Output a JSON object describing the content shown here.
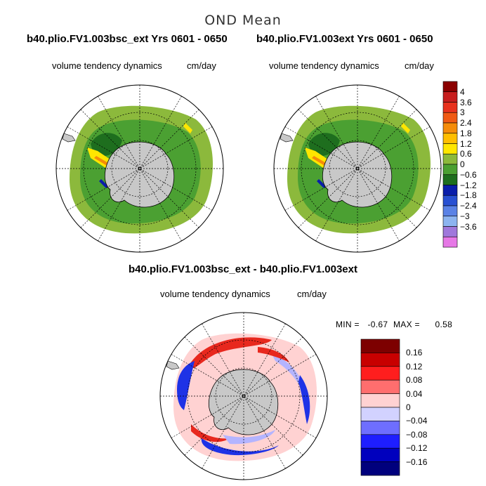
{
  "title": "OND Mean",
  "panels": {
    "left": {
      "title": "b40.plio.FV1.003bsc_ext  Yrs 0601 - 0650",
      "subtitle": "volume tendency dynamics",
      "units": "cm/day"
    },
    "right": {
      "title": "b40.plio.FV1.003ext  Yrs 0601 - 0650",
      "subtitle": "volume tendency dynamics",
      "units": "cm/day"
    },
    "diff": {
      "title": "b40.plio.FV1.003bsc_ext - b40.plio.FV1.003ext",
      "subtitle": "volume tendency dynamics",
      "units": "cm/day",
      "min_label": "MIN =",
      "min_value": "-0.67",
      "max_label": "MAX =",
      "max_value": "0.58"
    }
  },
  "colorbar_top": {
    "labels": [
      "4",
      "3.6",
      "3",
      "2.4",
      "1.8",
      "1.2",
      "0.6",
      "0",
      "−0.6",
      "−1.2",
      "−1.8",
      "−2.4",
      "−3",
      "−3.6"
    ],
    "colors": [
      "#8b0000",
      "#c81e1e",
      "#e8321e",
      "#f05a14",
      "#f58c0a",
      "#ffbe00",
      "#ffe600",
      "#8cb93c",
      "#4ba032",
      "#1e6e1e",
      "#0a1eaa",
      "#2850d2",
      "#5a82e6",
      "#8cb4f0",
      "#a078dc",
      "#e678e6"
    ]
  },
  "colorbar_diff": {
    "labels": [
      "0.16",
      "0.12",
      "0.08",
      "0.04",
      "0",
      "−0.04",
      "−0.08",
      "−0.12",
      "−0.16"
    ],
    "colors": [
      "#7d0000",
      "#c80000",
      "#ff1e1e",
      "#ff6e6e",
      "#ffd2d2",
      "#d2d2ff",
      "#6e6eff",
      "#1e1eff",
      "#0000be",
      "#00007d"
    ]
  },
  "map_colors": {
    "land": "#c8c8c8",
    "pos_light": "#8cb93c",
    "neg_mid": "#4ba032",
    "neg_dark": "#1e6e1e",
    "yellow": "#ffe600",
    "orange": "#f58c0a",
    "blue": "#0a1eaa",
    "diff_red": "#e8281e",
    "diff_pink": "#ffb4b4",
    "diff_blue": "#1e32e6",
    "diff_lightblue": "#b4b4ff"
  }
}
